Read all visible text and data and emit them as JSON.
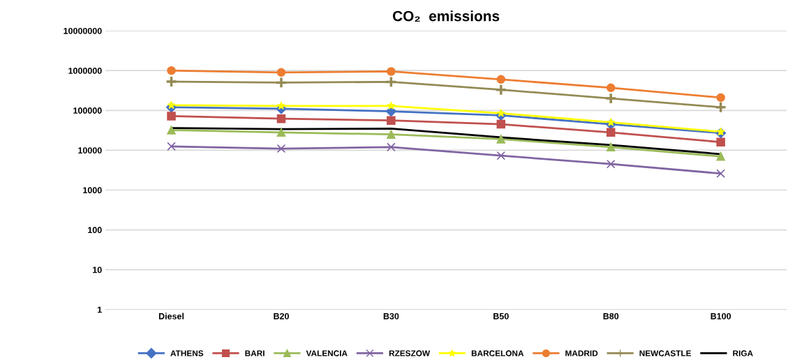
{
  "chart_data": {
    "type": "line",
    "title": "CO₂  emissions",
    "categories": [
      "Diesel",
      "B20",
      "B30",
      "B50",
      "B80",
      "B100"
    ],
    "log": "y",
    "ylim": [
      1,
      10000000
    ],
    "yticks": [
      1,
      10,
      100,
      1000,
      10000,
      100000,
      1000000,
      10000000
    ],
    "grid": "y",
    "legend": "bottom",
    "series": [
      {
        "name": "ATHENS",
        "color": "#4472c4",
        "marker": "diamond",
        "values": [
          120000,
          110000,
          95000,
          75000,
          45000,
          27000
        ]
      },
      {
        "name": "BARI",
        "color": "#c0504d",
        "marker": "square",
        "values": [
          72000,
          62000,
          56000,
          45000,
          28000,
          16000
        ]
      },
      {
        "name": "VALENCIA",
        "color": "#9bbb59",
        "marker": "triangle",
        "values": [
          32000,
          28000,
          25000,
          19000,
          12000,
          7000
        ]
      },
      {
        "name": "RZESZOW",
        "color": "#8064a2",
        "marker": "cross",
        "values": [
          12500,
          11000,
          12000,
          7300,
          4500,
          2600
        ]
      },
      {
        "name": "BARCELONA",
        "color": "#ffff00",
        "marker": "star",
        "values": [
          135000,
          130000,
          130000,
          85000,
          50000,
          29000
        ]
      },
      {
        "name": "MADRID",
        "color": "#ed7d31",
        "marker": "circle",
        "values": [
          1000000,
          900000,
          950000,
          600000,
          370000,
          210000
        ]
      },
      {
        "name": "NEWCASTLE",
        "color": "#948a54",
        "marker": "plus",
        "values": [
          530000,
          500000,
          520000,
          330000,
          200000,
          120000
        ]
      },
      {
        "name": "RIGA",
        "color": "#000000",
        "marker": "none",
        "values": [
          36000,
          34000,
          35000,
          21000,
          13500,
          8000
        ]
      }
    ]
  }
}
